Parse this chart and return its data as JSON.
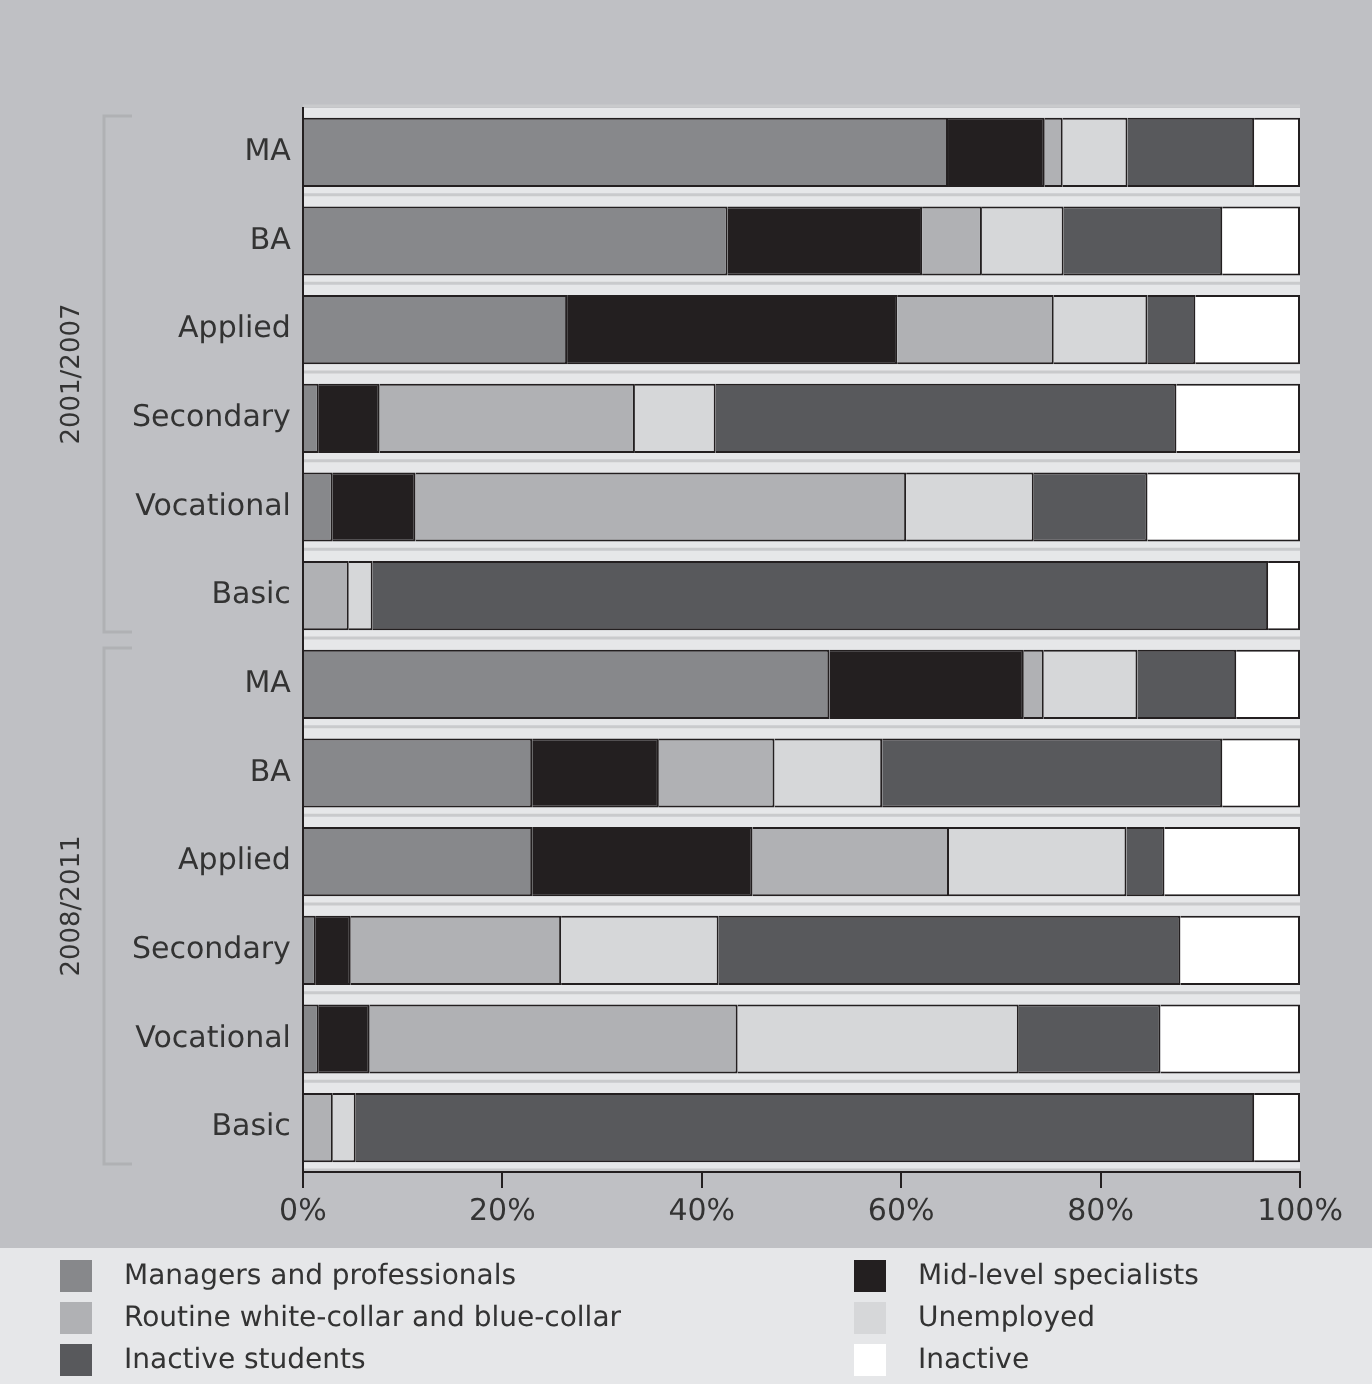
{
  "chart_data": {
    "type": "bar",
    "orientation": "horizontal",
    "stacked": true,
    "categories": [
      "MA",
      "BA",
      "Applied",
      "Secondary",
      "Vocational",
      "Basic",
      "MA",
      "BA",
      "Applied",
      "Secondary",
      "Vocational",
      "Basic"
    ],
    "series": [
      {
        "name": "Managers and professionals",
        "color": "#87888b",
        "values": [
          64.7,
          42.6,
          26.5,
          1.6,
          3.0,
          0,
          52.8,
          23.0,
          23.0,
          1.3,
          1.6,
          0
        ]
      },
      {
        "name": "Mid-level specialists",
        "color": "#231f20",
        "values": [
          9.7,
          19.5,
          33.1,
          6.1,
          8.3,
          0,
          19.5,
          12.7,
          22.1,
          3.5,
          5.1,
          0
        ]
      },
      {
        "name": "Routine white-collar and blue-collar",
        "color": "#b0b1b4",
        "values": [
          1.8,
          6.0,
          15.7,
          25.6,
          49.2,
          4.6,
          2.0,
          11.6,
          19.7,
          21.1,
          36.9,
          3.0
        ]
      },
      {
        "name": "Unemployed",
        "color": "#d6d7d9",
        "values": [
          6.5,
          8.2,
          9.4,
          8.1,
          12.8,
          2.4,
          9.4,
          10.8,
          17.8,
          15.8,
          28.2,
          2.3
        ]
      },
      {
        "name": "Inactive students",
        "color": "#58595c",
        "values": [
          12.7,
          15.9,
          4.8,
          46.2,
          11.4,
          89.8,
          9.9,
          34.1,
          3.8,
          46.3,
          14.2,
          90.1
        ]
      },
      {
        "name": "Inactive",
        "color": "#ffffff",
        "values": [
          4.6,
          7.8,
          10.5,
          12.4,
          15.3,
          3.2,
          6.4,
          7.8,
          13.6,
          12.0,
          14.0,
          4.6
        ]
      }
    ],
    "xlim": [
      0,
      100
    ],
    "xticks": [
      {
        "value": 0,
        "label": "0%"
      },
      {
        "value": 20,
        "label": "20%"
      },
      {
        "value": 40,
        "label": "40%"
      },
      {
        "value": 60,
        "label": "60%"
      },
      {
        "value": 80,
        "label": "80%"
      },
      {
        "value": 100,
        "label": "100%"
      }
    ],
    "annotations": [
      "2001/2007",
      "2008/2011"
    ],
    "grid": false,
    "legend": "bottom"
  }
}
